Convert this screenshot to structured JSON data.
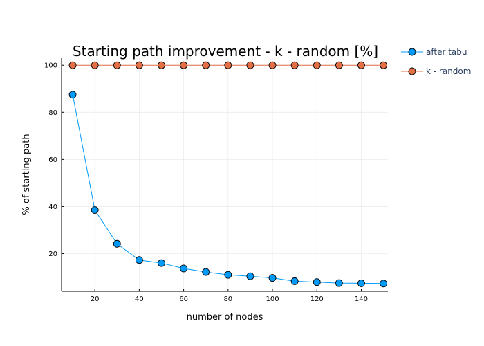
{
  "chart_data": {
    "type": "line",
    "title": "Starting path improvement - k - random [%]",
    "xlabel": "number of nodes",
    "ylabel": "% of starting path",
    "xlim": [
      5,
      152
    ],
    "ylim": [
      4,
      103
    ],
    "x_ticks": [
      20,
      40,
      60,
      80,
      100,
      120,
      140
    ],
    "y_ticks": [
      20,
      40,
      60,
      80,
      100
    ],
    "grid": true,
    "legend_position": "top-right-outside",
    "x": [
      10,
      20,
      30,
      40,
      50,
      60,
      70,
      80,
      90,
      100,
      110,
      120,
      130,
      140,
      150
    ],
    "series": [
      {
        "name": "after tabu",
        "color": "#009af9",
        "values": [
          87.5,
          38.5,
          24.2,
          17.3,
          16.0,
          13.7,
          12.2,
          11.0,
          10.4,
          9.7,
          8.3,
          7.9,
          7.5,
          7.4,
          7.3
        ]
      },
      {
        "name": "k - random",
        "color": "#e26f46",
        "values": [
          100,
          100,
          100,
          100,
          100,
          100,
          100,
          100,
          100,
          100,
          100,
          100,
          100,
          100,
          100
        ]
      }
    ]
  }
}
